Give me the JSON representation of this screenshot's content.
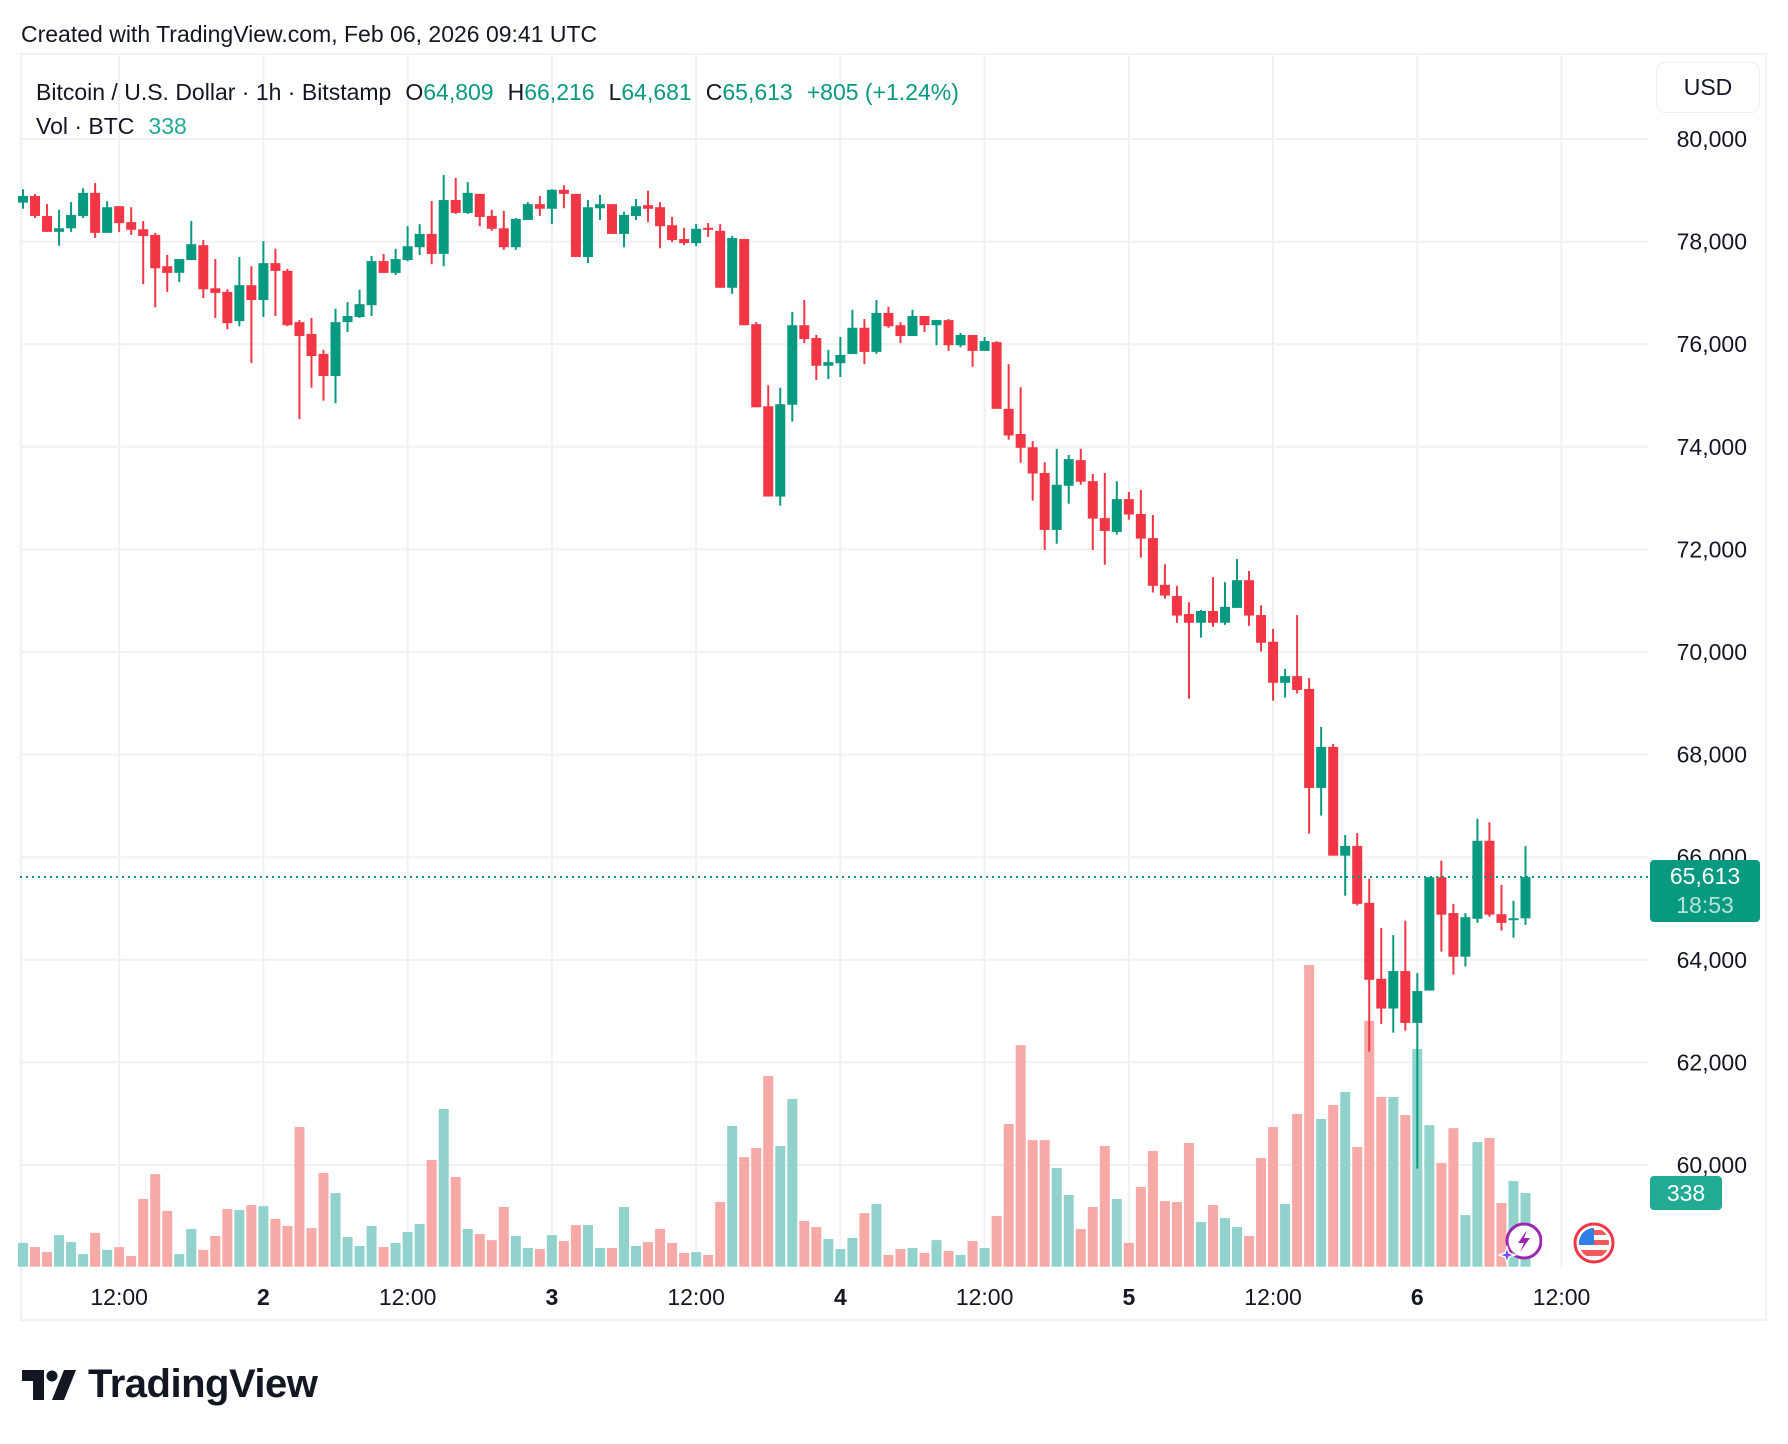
{
  "watermark": "Created with TradingView.com, Feb 06, 2026 09:41 UTC",
  "legend": {
    "symbol": "Bitcoin / U.S. Dollar · 1h · Bitstamp",
    "o_label": "O",
    "o": "64,809",
    "h_label": "H",
    "h": "66,216",
    "l_label": "L",
    "l": "64,681",
    "c_label": "C",
    "c": "65,613",
    "change": "+805 (+1.24%)",
    "vol_label": "Vol · BTC",
    "vol": "338"
  },
  "currency_button": "USD",
  "last_price": {
    "price": "65,613",
    "countdown": "18:53",
    "volume": "338"
  },
  "logo": "TradingView",
  "icons": [
    "lightning-sparkle-icon",
    "us-flag-icon"
  ],
  "colors": {
    "up": "#089981",
    "down": "#F23645",
    "vol_up": "#92D2CC",
    "vol_down": "#F7A9A7",
    "grid": "#F0F1F4"
  },
  "chart_data": {
    "type": "candlestick",
    "interval": "1h",
    "ylabel": "USD",
    "ylim": [
      58600,
      81000
    ],
    "y_ticks": [
      "80,000",
      "78,000",
      "76,000",
      "74,000",
      "72,000",
      "70,000",
      "68,000",
      "66,000",
      "64,000",
      "62,000",
      "60,000"
    ],
    "y_tick_values": [
      80000,
      78000,
      76000,
      74000,
      72000,
      70000,
      68000,
      66000,
      64000,
      62000,
      60000
    ],
    "x_ticks": [
      {
        "label": "12:00",
        "time": "2026-02-01T12:00",
        "major": false
      },
      {
        "label": "2",
        "time": "2026-02-02T00:00",
        "major": true
      },
      {
        "label": "12:00",
        "time": "2026-02-02T12:00",
        "major": false
      },
      {
        "label": "3",
        "time": "2026-02-03T00:00",
        "major": true
      },
      {
        "label": "12:00",
        "time": "2026-02-03T12:00",
        "major": false
      },
      {
        "label": "4",
        "time": "2026-02-04T00:00",
        "major": true
      },
      {
        "label": "12:00",
        "time": "2026-02-04T12:00",
        "major": false
      },
      {
        "label": "5",
        "time": "2026-02-05T00:00",
        "major": true
      },
      {
        "label": "12:00",
        "time": "2026-02-05T12:00",
        "major": false
      },
      {
        "label": "6",
        "time": "2026-02-06T00:00",
        "major": true
      },
      {
        "label": "12:00",
        "time": "2026-02-06T12:00",
        "major": false
      }
    ],
    "grid": true,
    "last_price": 65613,
    "fields": [
      "time",
      "open",
      "high",
      "low",
      "close",
      "volume_btc"
    ],
    "candles": [
      [
        "2026-02-01T04:00",
        78760,
        79020,
        78640,
        78890,
        109
      ],
      [
        "2026-02-01T05:00",
        78890,
        78930,
        78460,
        78500,
        90
      ],
      [
        "2026-02-01T06:00",
        78500,
        78730,
        78190,
        78190,
        67
      ],
      [
        "2026-02-01T07:00",
        78190,
        78620,
        77920,
        78260,
        145
      ],
      [
        "2026-02-01T08:00",
        78260,
        78770,
        78190,
        78520,
        113
      ],
      [
        "2026-02-01T09:00",
        78500,
        79040,
        78460,
        78950,
        58
      ],
      [
        "2026-02-01T10:00",
        78950,
        79140,
        78070,
        78170,
        155
      ],
      [
        "2026-02-01T11:00",
        78170,
        78790,
        78170,
        78670,
        77
      ],
      [
        "2026-02-01T12:00",
        78690,
        78690,
        78190,
        78360,
        90
      ],
      [
        "2026-02-01T13:00",
        78380,
        78670,
        78130,
        78230,
        49
      ],
      [
        "2026-02-01T14:00",
        78240,
        78400,
        77170,
        78110,
        311
      ],
      [
        "2026-02-01T15:00",
        78130,
        78170,
        76720,
        77480,
        425
      ],
      [
        "2026-02-01T16:00",
        77520,
        77740,
        77020,
        77390,
        256
      ],
      [
        "2026-02-01T17:00",
        77390,
        77660,
        77210,
        77660,
        58
      ],
      [
        "2026-02-01T18:00",
        77640,
        78400,
        77640,
        77950,
        173
      ],
      [
        "2026-02-01T19:00",
        77930,
        78030,
        76900,
        77070,
        77
      ],
      [
        "2026-02-01T20:00",
        77090,
        77660,
        76510,
        77000,
        141
      ],
      [
        "2026-02-01T21:00",
        77020,
        77070,
        76290,
        76410,
        265
      ],
      [
        "2026-02-01T22:00",
        76450,
        77700,
        76350,
        77150,
        260
      ],
      [
        "2026-02-01T23:00",
        77150,
        77520,
        75630,
        76860,
        283
      ],
      [
        "2026-02-02T00:00",
        76860,
        78010,
        76530,
        77580,
        278
      ],
      [
        "2026-02-02T01:00",
        77580,
        77860,
        76550,
        77430,
        219
      ],
      [
        "2026-02-02T02:00",
        77430,
        77470,
        76350,
        76370,
        187
      ],
      [
        "2026-02-02T03:00",
        76430,
        76470,
        74540,
        76160,
        641
      ],
      [
        "2026-02-02T04:00",
        76200,
        76510,
        75150,
        75770,
        177
      ],
      [
        "2026-02-02T05:00",
        75810,
        75890,
        74900,
        75380,
        430
      ],
      [
        "2026-02-02T06:00",
        75380,
        76690,
        74850,
        76430,
        338
      ],
      [
        "2026-02-02T07:00",
        76430,
        76820,
        76240,
        76550,
        136
      ],
      [
        "2026-02-02T08:00",
        76530,
        77060,
        76510,
        76780,
        95
      ],
      [
        "2026-02-02T09:00",
        76760,
        77720,
        76550,
        77620,
        187
      ],
      [
        "2026-02-02T10:00",
        77620,
        77760,
        77390,
        77390,
        90
      ],
      [
        "2026-02-02T11:00",
        77390,
        77860,
        77350,
        77660,
        109
      ],
      [
        "2026-02-02T12:00",
        77640,
        78300,
        77620,
        77910,
        159
      ],
      [
        "2026-02-02T13:00",
        77890,
        78340,
        77740,
        78150,
        196
      ],
      [
        "2026-02-02T14:00",
        78150,
        78790,
        77560,
        77760,
        490
      ],
      [
        "2026-02-02T15:00",
        77760,
        79300,
        77520,
        78810,
        724
      ],
      [
        "2026-02-02T16:00",
        78810,
        79240,
        78540,
        78560,
        412
      ],
      [
        "2026-02-02T17:00",
        78560,
        79160,
        78540,
        78950,
        173
      ],
      [
        "2026-02-02T18:00",
        78930,
        78930,
        78300,
        78480,
        150
      ],
      [
        "2026-02-02T19:00",
        78500,
        78620,
        78210,
        78250,
        122
      ],
      [
        "2026-02-02T20:00",
        78260,
        78600,
        77840,
        77890,
        274
      ],
      [
        "2026-02-02T21:00",
        77890,
        78460,
        77840,
        78440,
        141
      ],
      [
        "2026-02-02T22:00",
        78420,
        78770,
        78420,
        78730,
        86
      ],
      [
        "2026-02-02T23:00",
        78730,
        78890,
        78500,
        78640,
        81
      ],
      [
        "2026-02-03T00:00",
        78640,
        79020,
        78340,
        79010,
        145
      ],
      [
        "2026-02-03T01:00",
        79010,
        79100,
        78650,
        78930,
        118
      ],
      [
        "2026-02-03T02:00",
        78930,
        78930,
        77700,
        77700,
        191
      ],
      [
        "2026-02-03T03:00",
        77700,
        78810,
        77580,
        78670,
        191
      ],
      [
        "2026-02-03T04:00",
        78650,
        78910,
        78420,
        78730,
        86
      ],
      [
        "2026-02-03T05:00",
        78730,
        78730,
        78150,
        78150,
        86
      ],
      [
        "2026-02-03T06:00",
        78150,
        78580,
        77890,
        78520,
        274
      ],
      [
        "2026-02-03T07:00",
        78500,
        78830,
        78420,
        78690,
        95
      ],
      [
        "2026-02-03T08:00",
        78710,
        78990,
        78380,
        78640,
        113
      ],
      [
        "2026-02-03T09:00",
        78670,
        78770,
        77870,
        78300,
        173
      ],
      [
        "2026-02-03T10:00",
        78320,
        78480,
        77990,
        78030,
        109
      ],
      [
        "2026-02-03T11:00",
        78050,
        78270,
        77930,
        77970,
        63
      ],
      [
        "2026-02-03T12:00",
        77970,
        78340,
        77910,
        78250,
        67
      ],
      [
        "2026-02-03T13:00",
        78270,
        78360,
        78090,
        78230,
        54
      ],
      [
        "2026-02-03T14:00",
        78210,
        78340,
        77100,
        77100,
        297
      ],
      [
        "2026-02-03T15:00",
        77100,
        78110,
        76980,
        78070,
        646
      ],
      [
        "2026-02-03T16:00",
        78050,
        78050,
        76370,
        76370,
        503
      ],
      [
        "2026-02-03T17:00",
        76390,
        76430,
        74770,
        74770,
        545
      ],
      [
        "2026-02-03T18:00",
        74790,
        75200,
        73030,
        73030,
        875
      ],
      [
        "2026-02-03T19:00",
        73030,
        75150,
        72850,
        74830,
        554
      ],
      [
        "2026-02-03T20:00",
        74820,
        76630,
        74490,
        76370,
        770
      ],
      [
        "2026-02-03T21:00",
        76370,
        76860,
        76020,
        76100,
        210
      ],
      [
        "2026-02-03T22:00",
        76120,
        76180,
        75300,
        75580,
        182
      ],
      [
        "2026-02-03T23:00",
        75580,
        75890,
        75320,
        75650,
        127
      ],
      [
        "2026-02-04T00:00",
        75630,
        76140,
        75360,
        75790,
        81
      ],
      [
        "2026-02-04T01:00",
        75810,
        76670,
        75810,
        76320,
        132
      ],
      [
        "2026-02-04T02:00",
        76320,
        76490,
        75610,
        75850,
        246
      ],
      [
        "2026-02-04T03:00",
        75850,
        76860,
        75810,
        76610,
        288
      ],
      [
        "2026-02-04T04:00",
        76610,
        76730,
        76320,
        76350,
        54
      ],
      [
        "2026-02-04T05:00",
        76370,
        76430,
        76020,
        76160,
        81
      ],
      [
        "2026-02-04T06:00",
        76160,
        76670,
        76160,
        76550,
        86
      ],
      [
        "2026-02-04T07:00",
        76550,
        76550,
        76240,
        76370,
        63
      ],
      [
        "2026-02-04T08:00",
        76370,
        76470,
        75980,
        76470,
        122
      ],
      [
        "2026-02-04T09:00",
        76470,
        76490,
        75870,
        75980,
        72
      ],
      [
        "2026-02-04T10:00",
        75980,
        76220,
        75940,
        76180,
        54
      ],
      [
        "2026-02-04T11:00",
        76180,
        76180,
        75560,
        75870,
        118
      ],
      [
        "2026-02-04T12:00",
        75870,
        76140,
        75870,
        76060,
        86
      ],
      [
        "2026-02-04T13:00",
        76040,
        76060,
        74740,
        74740,
        233
      ],
      [
        "2026-02-04T14:00",
        74740,
        75610,
        74140,
        74220,
        655
      ],
      [
        "2026-02-04T15:00",
        74250,
        75160,
        73690,
        73980,
        1017
      ],
      [
        "2026-02-04T16:00",
        73990,
        74110,
        72950,
        73480,
        581
      ],
      [
        "2026-02-04T17:00",
        73490,
        73700,
        71990,
        72380,
        581
      ],
      [
        "2026-02-04T18:00",
        72380,
        73960,
        72110,
        73260,
        453
      ],
      [
        "2026-02-04T19:00",
        73240,
        73840,
        72890,
        73760,
        329
      ],
      [
        "2026-02-04T20:00",
        73740,
        73960,
        73260,
        73320,
        173
      ],
      [
        "2026-02-04T21:00",
        73330,
        73470,
        71990,
        72600,
        274
      ],
      [
        "2026-02-04T22:00",
        72610,
        73490,
        71700,
        72360,
        554
      ],
      [
        "2026-02-04T23:00",
        72340,
        73330,
        72290,
        72980,
        311
      ],
      [
        "2026-02-05T00:00",
        72980,
        73120,
        72580,
        72680,
        109
      ],
      [
        "2026-02-05T01:00",
        72690,
        73160,
        71840,
        72210,
        366
      ],
      [
        "2026-02-05T02:00",
        72220,
        72670,
        71160,
        71290,
        531
      ],
      [
        "2026-02-05T03:00",
        71310,
        71710,
        71040,
        71100,
        301
      ],
      [
        "2026-02-05T04:00",
        71090,
        71290,
        70570,
        70710,
        297
      ],
      [
        "2026-02-05T05:00",
        70740,
        70970,
        69090,
        70570,
        568
      ],
      [
        "2026-02-05T06:00",
        70570,
        70820,
        70280,
        70800,
        205
      ],
      [
        "2026-02-05T07:00",
        70800,
        71460,
        70490,
        70570,
        283
      ],
      [
        "2026-02-05T08:00",
        70570,
        71360,
        70530,
        70880,
        223
      ],
      [
        "2026-02-05T09:00",
        70860,
        71810,
        70860,
        71400,
        182
      ],
      [
        "2026-02-05T10:00",
        71400,
        71580,
        70510,
        70710,
        141
      ],
      [
        "2026-02-05T11:00",
        70720,
        70910,
        70010,
        70180,
        499
      ],
      [
        "2026-02-05T12:00",
        70200,
        70450,
        69050,
        69400,
        641
      ],
      [
        "2026-02-05T13:00",
        69400,
        69670,
        69110,
        69530,
        288
      ],
      [
        "2026-02-05T14:00",
        69530,
        70720,
        69190,
        69260,
        701
      ],
      [
        "2026-02-05T15:00",
        69280,
        69490,
        66460,
        67350,
        1385
      ],
      [
        "2026-02-05T16:00",
        67350,
        68540,
        66810,
        68150,
        678
      ],
      [
        "2026-02-05T17:00",
        68150,
        68210,
        66030,
        66030,
        742
      ],
      [
        "2026-02-05T18:00",
        66030,
        66430,
        65250,
        66220,
        802
      ],
      [
        "2026-02-05T19:00",
        66220,
        66470,
        65060,
        65090,
        549
      ],
      [
        "2026-02-05T20:00",
        65110,
        65580,
        62210,
        63610,
        1128
      ],
      [
        "2026-02-05T21:00",
        63630,
        64620,
        62750,
        63050,
        779
      ],
      [
        "2026-02-05T22:00",
        63050,
        64480,
        62580,
        63780,
        779
      ],
      [
        "2026-02-05T23:00",
        63780,
        64760,
        62620,
        62770,
        696
      ],
      [
        "2026-02-06T00:00",
        62770,
        63740,
        59930,
        63390,
        1000
      ],
      [
        "2026-02-06T01:00",
        63400,
        65610,
        63400,
        65610,
        650
      ],
      [
        "2026-02-06T02:00",
        65610,
        65930,
        64160,
        64880,
        476
      ],
      [
        "2026-02-06T03:00",
        64910,
        65090,
        63710,
        64060,
        636
      ],
      [
        "2026-02-06T04:00",
        64060,
        64910,
        63870,
        64830,
        237
      ],
      [
        "2026-02-06T05:00",
        64800,
        66750,
        64720,
        66320,
        572
      ],
      [
        "2026-02-06T06:00",
        66320,
        66680,
        64840,
        64880,
        591
      ],
      [
        "2026-02-06T07:00",
        64890,
        65460,
        64570,
        64720,
        292
      ],
      [
        "2026-02-06T08:00",
        64800,
        65150,
        64430,
        64810,
        393
      ],
      [
        "2026-02-06T09:00",
        64809,
        66216,
        64681,
        65613,
        338
      ]
    ]
  }
}
